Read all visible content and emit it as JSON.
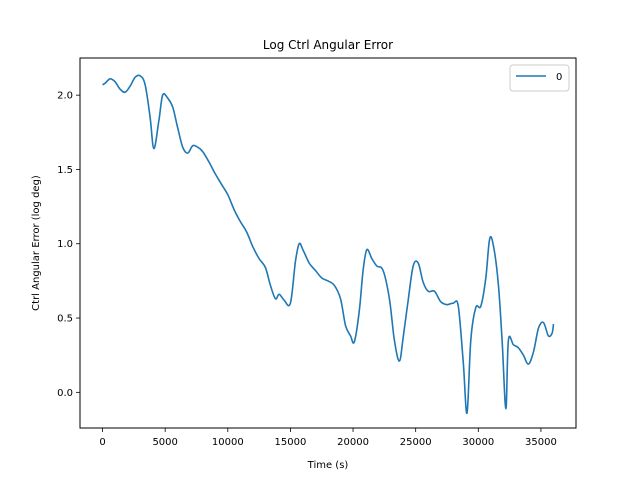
{
  "chart_data": {
    "type": "line",
    "title": "Log Ctrl Angular Error",
    "xlabel": "Time (s)",
    "ylabel": "Ctrl Angular Error (log deg)",
    "xlim": [
      -1800,
      37800
    ],
    "ylim": [
      -0.24,
      2.25
    ],
    "xticks": [
      0,
      5000,
      10000,
      15000,
      20000,
      25000,
      30000,
      35000
    ],
    "xtick_labels": [
      "0",
      "5000",
      "10000",
      "15000",
      "20000",
      "25000",
      "30000",
      "35000"
    ],
    "yticks": [
      0.0,
      0.5,
      1.0,
      1.5,
      2.0
    ],
    "ytick_labels": [
      "0.0",
      "0.5",
      "1.0",
      "1.5",
      "2.0"
    ],
    "grid": false,
    "legend_position": "top-right",
    "series": [
      {
        "name": "0",
        "color": "#1f77b4",
        "x": [
          0,
          200,
          600,
          1000,
          1400,
          1800,
          2200,
          2600,
          3000,
          3400,
          3800,
          4100,
          4500,
          4800,
          5200,
          5600,
          6000,
          6400,
          6800,
          7200,
          7600,
          8000,
          8500,
          9000,
          9500,
          10000,
          10500,
          11000,
          11500,
          12000,
          12500,
          13000,
          13400,
          13800,
          14100,
          14500,
          15000,
          15400,
          15700,
          16000,
          16500,
          17000,
          17500,
          18000,
          18500,
          19000,
          19400,
          19800,
          20100,
          20500,
          20800,
          21100,
          21500,
          21900,
          22400,
          22900,
          23300,
          23700,
          24000,
          24400,
          24800,
          25200,
          25600,
          26000,
          26500,
          27000,
          27500,
          28000,
          28400,
          28800,
          29100,
          29400,
          29800,
          30200,
          30600,
          30900,
          31200,
          31600,
          31900,
          32200,
          32400,
          32800,
          33200,
          33600,
          34000,
          34400,
          34800,
          35200,
          35600,
          35900,
          36000
        ],
        "values": [
          2.07,
          2.08,
          2.11,
          2.09,
          2.04,
          2.02,
          2.06,
          2.12,
          2.13,
          2.07,
          1.85,
          1.64,
          1.83,
          2.0,
          1.98,
          1.92,
          1.78,
          1.65,
          1.61,
          1.66,
          1.65,
          1.62,
          1.55,
          1.47,
          1.4,
          1.33,
          1.23,
          1.15,
          1.08,
          0.98,
          0.9,
          0.84,
          0.72,
          0.63,
          0.66,
          0.62,
          0.6,
          0.88,
          1.0,
          0.96,
          0.87,
          0.82,
          0.77,
          0.75,
          0.72,
          0.63,
          0.45,
          0.38,
          0.34,
          0.55,
          0.82,
          0.96,
          0.9,
          0.85,
          0.82,
          0.63,
          0.35,
          0.21,
          0.37,
          0.62,
          0.85,
          0.87,
          0.74,
          0.68,
          0.68,
          0.61,
          0.59,
          0.6,
          0.58,
          0.2,
          -0.14,
          0.35,
          0.57,
          0.58,
          0.77,
          1.03,
          0.99,
          0.73,
          0.35,
          -0.11,
          0.35,
          0.32,
          0.3,
          0.25,
          0.19,
          0.27,
          0.43,
          0.47,
          0.38,
          0.4,
          0.46
        ]
      }
    ]
  }
}
